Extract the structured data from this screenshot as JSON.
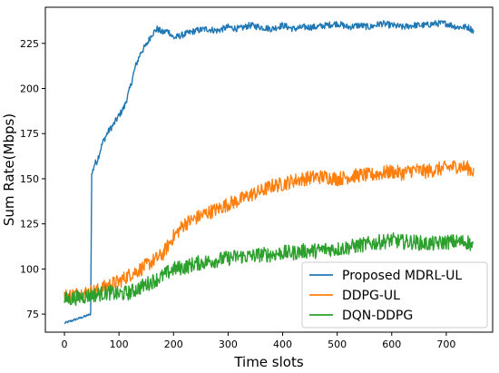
{
  "chart_data": {
    "type": "line",
    "title": "",
    "xlabel": "Time slots",
    "ylabel": "Sum Rate(Mbps)",
    "xlim": [
      -35,
      785
    ],
    "ylim": [
      65,
      245
    ],
    "x_ticks": [
      0,
      100,
      200,
      300,
      400,
      500,
      600,
      700
    ],
    "y_ticks": [
      75,
      100,
      125,
      150,
      175,
      200,
      225
    ],
    "grid": false,
    "legend_position": "lower-right",
    "series": [
      {
        "name": "Proposed MDRL-UL",
        "color": "#1f77b4",
        "x": [
          0,
          10,
          20,
          30,
          40,
          48,
          50,
          55,
          60,
          70,
          80,
          90,
          100,
          110,
          120,
          130,
          140,
          150,
          160,
          170,
          180,
          190,
          200,
          220,
          240,
          260,
          280,
          300,
          320,
          340,
          360,
          380,
          400,
          420,
          440,
          460,
          480,
          500,
          520,
          540,
          560,
          580,
          600,
          620,
          640,
          660,
          680,
          700,
          720,
          740,
          750
        ],
        "y": [
          70,
          71,
          72,
          73,
          74,
          75,
          152,
          158,
          160,
          170,
          176,
          180,
          185,
          190,
          200,
          212,
          220,
          224,
          230,
          233,
          231,
          232,
          228,
          230,
          232,
          233,
          232,
          234,
          233,
          235,
          234,
          233,
          235,
          233,
          234,
          234,
          235,
          236,
          234,
          235,
          234,
          236,
          235,
          234,
          235,
          235,
          236,
          236,
          234,
          234,
          232
        ]
      },
      {
        "name": "DDPG-UL",
        "color": "#ff7f0e",
        "x": [
          0,
          20,
          40,
          60,
          80,
          100,
          120,
          140,
          160,
          180,
          200,
          220,
          240,
          260,
          280,
          300,
          320,
          340,
          360,
          380,
          400,
          420,
          440,
          460,
          480,
          500,
          520,
          540,
          560,
          580,
          600,
          620,
          640,
          660,
          680,
          700,
          720,
          740,
          750
        ],
        "y": [
          85,
          86,
          87,
          88,
          91,
          93,
          97,
          100,
          104,
          108,
          118,
          125,
          128,
          131,
          133,
          136,
          138,
          141,
          143,
          146,
          147,
          149,
          150,
          151,
          151,
          150,
          151,
          152,
          152,
          153,
          154,
          153,
          155,
          154,
          155,
          156,
          157,
          156,
          154
        ]
      },
      {
        "name": "DQN-DDPG",
        "color": "#2ca02c",
        "x": [
          0,
          20,
          40,
          60,
          80,
          100,
          120,
          140,
          160,
          180,
          200,
          220,
          240,
          260,
          280,
          300,
          320,
          340,
          360,
          380,
          400,
          420,
          440,
          460,
          480,
          500,
          520,
          540,
          560,
          580,
          600,
          620,
          640,
          660,
          680,
          700,
          720,
          740,
          750
        ],
        "y": [
          83,
          84,
          85,
          86,
          87,
          86,
          87,
          90,
          93,
          96,
          100,
          101,
          103,
          104,
          105,
          106,
          107,
          107,
          108,
          108,
          109,
          109,
          110,
          110,
          111,
          111,
          112,
          113,
          114,
          115,
          116,
          115,
          115,
          114,
          114,
          115,
          115,
          115,
          112
        ]
      }
    ]
  }
}
